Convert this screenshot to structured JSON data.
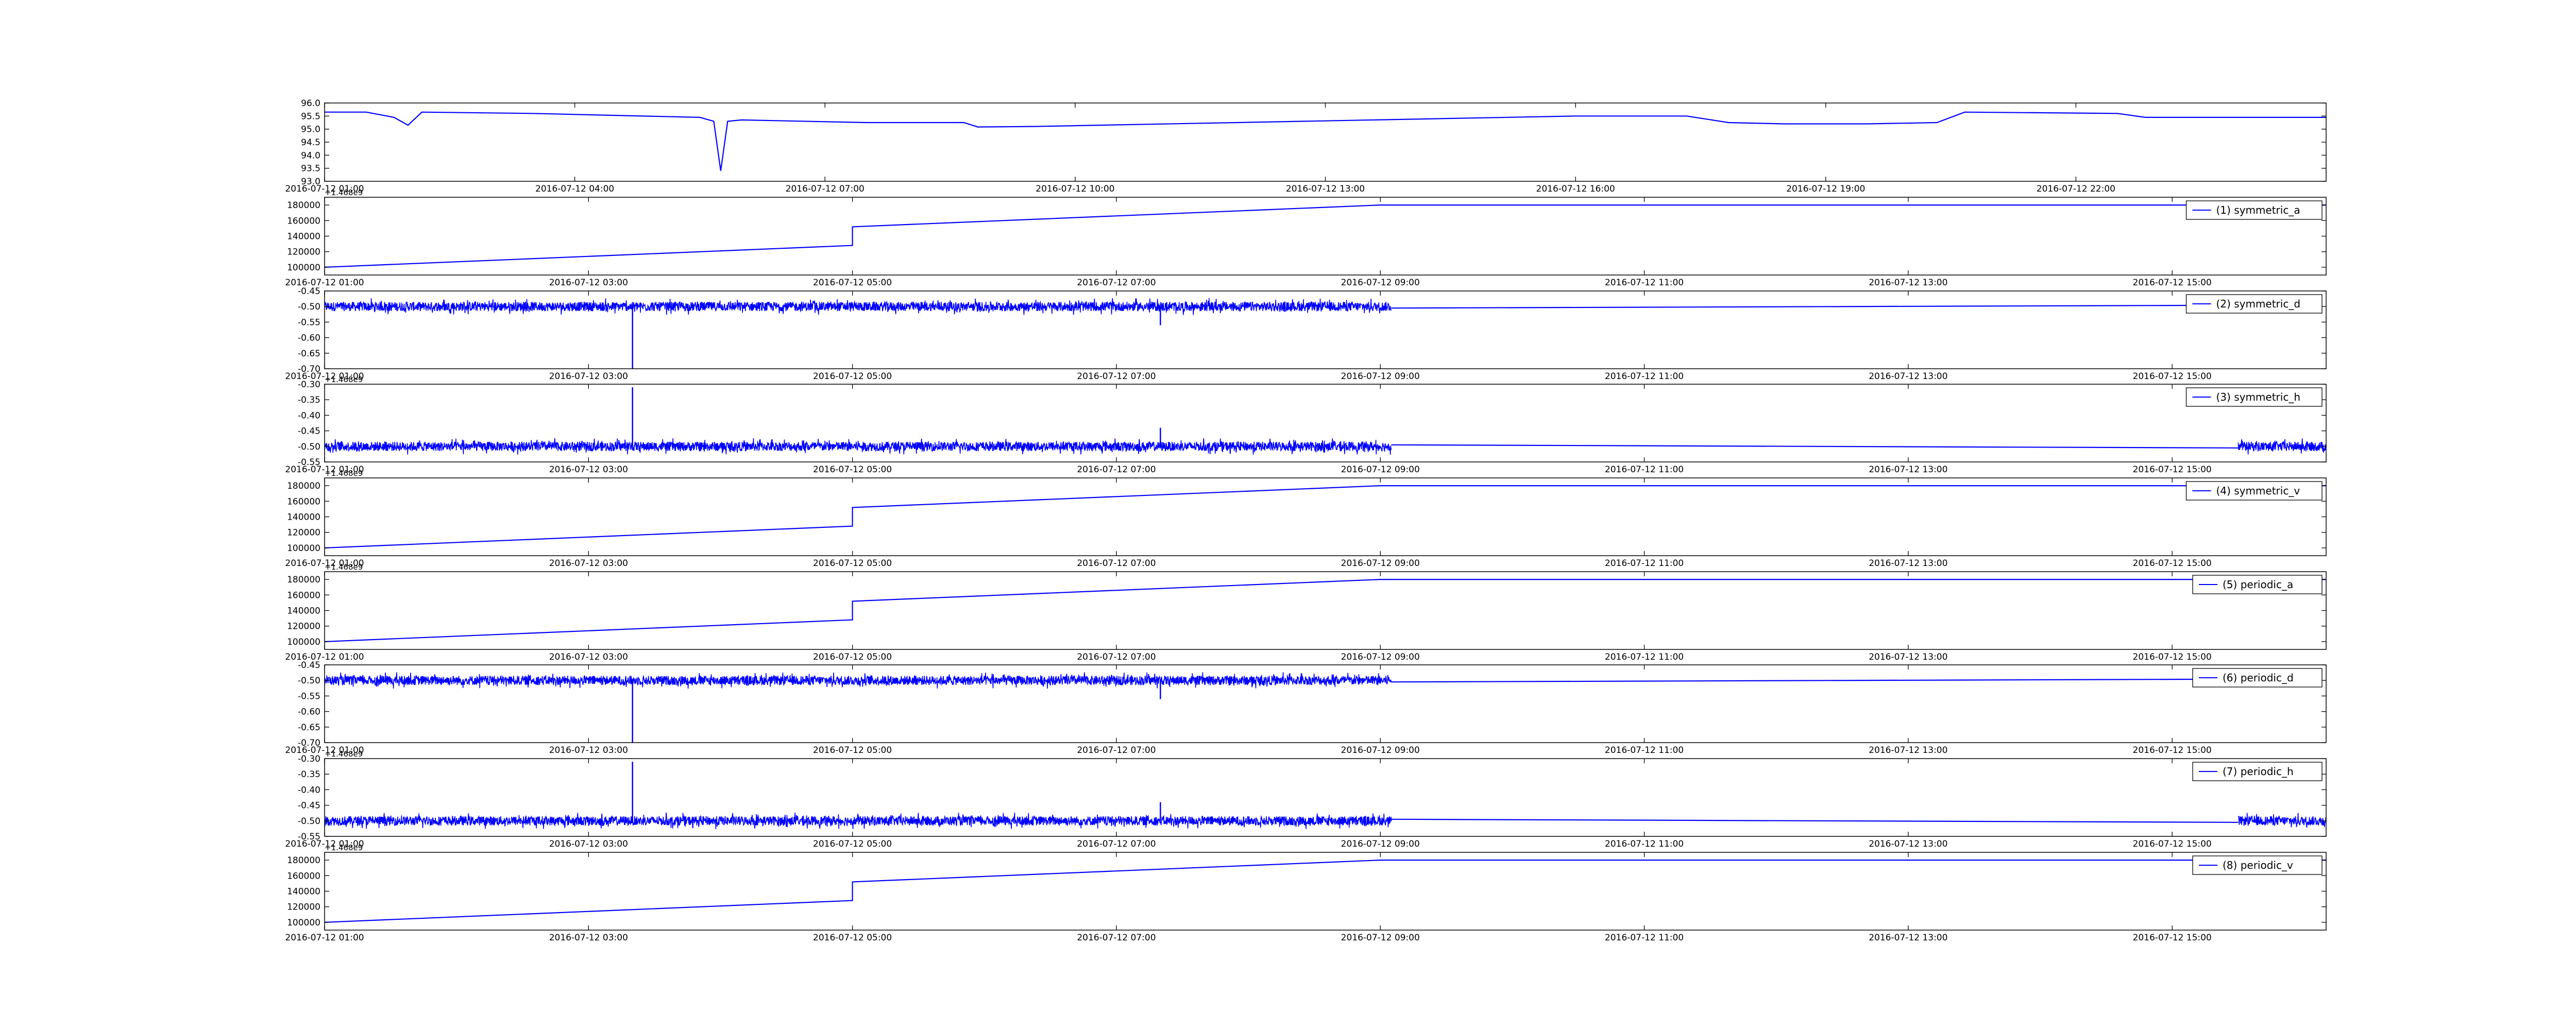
{
  "colors": {
    "line": "#0000ff",
    "axes": "#000000",
    "background": "#ffffff"
  },
  "chart_data": [
    {
      "type": "line",
      "title": "",
      "xlabel": "",
      "ylabel": "",
      "grid": false,
      "legend": "",
      "xaxis": "datetime",
      "xlim": [
        "2016-07-12 01:00",
        "2016-07-13 01:00"
      ],
      "xticks": [
        "2016-07-12 01:00",
        "2016-07-12 04:00",
        "2016-07-12 07:00",
        "2016-07-12 10:00",
        "2016-07-12 13:00",
        "2016-07-12 16:00",
        "2016-07-12 19:00",
        "2016-07-12 22:00"
      ],
      "ylim": [
        93.0,
        96.0
      ],
      "yticks": [
        "93.0",
        "93.5",
        "94.0",
        "94.5",
        "95.0",
        "95.5",
        "96.0"
      ],
      "series": [
        {
          "x": [
            "2016-07-12 01:00",
            "2016-07-12 01:30",
            "2016-07-12 01:50",
            "2016-07-12 02:00",
            "2016-07-12 02:10",
            "2016-07-12 03:30",
            "2016-07-12 05:30",
            "2016-07-12 05:40",
            "2016-07-12 05:45",
            "2016-07-12 05:50",
            "2016-07-12 06:00",
            "2016-07-12 07:30",
            "2016-07-12 08:40",
            "2016-07-12 08:50",
            "2016-07-12 09:30",
            "2016-07-12 16:00",
            "2016-07-12 17:20",
            "2016-07-12 17:50",
            "2016-07-12 18:30",
            "2016-07-12 19:30",
            "2016-07-12 20:20",
            "2016-07-12 20:40",
            "2016-07-12 22:30",
            "2016-07-12 22:50",
            "2016-07-13 01:00"
          ],
          "y": [
            95.65,
            95.65,
            95.45,
            95.15,
            95.65,
            95.6,
            95.45,
            95.3,
            93.4,
            95.3,
            95.35,
            95.25,
            95.25,
            95.08,
            95.1,
            95.5,
            95.5,
            95.25,
            95.2,
            95.2,
            95.25,
            95.65,
            95.6,
            95.45,
            95.45
          ]
        }
      ]
    },
    {
      "type": "line",
      "title": "",
      "xlabel": "",
      "ylabel": "",
      "grid": false,
      "legend": "top-right",
      "offset_text": "+1.468e9",
      "xaxis": "datetime",
      "xlim": [
        "2016-07-12 01:00",
        "2016-07-12 16:10"
      ],
      "xticks": [
        "2016-07-12 01:00",
        "2016-07-12 03:00",
        "2016-07-12 05:00",
        "2016-07-12 07:00",
        "2016-07-12 09:00",
        "2016-07-12 11:00",
        "2016-07-12 13:00",
        "2016-07-12 15:00"
      ],
      "ylim": [
        90000,
        190000
      ],
      "yticks": [
        "100000",
        "120000",
        "140000",
        "160000",
        "180000"
      ],
      "series": [
        {
          "name": "(1) symmetric_a",
          "x": [
            "2016-07-12 01:00",
            "2016-07-12 05:00",
            "2016-07-12 05:00",
            "2016-07-12 09:00",
            "2016-07-12 16:10"
          ],
          "y": [
            100000,
            128000,
            152000,
            180000,
            180000
          ]
        }
      ]
    },
    {
      "type": "line",
      "title": "",
      "xlabel": "",
      "ylabel": "",
      "grid": false,
      "legend": "top-right",
      "xaxis": "datetime",
      "xlim": [
        "2016-07-12 01:00",
        "2016-07-12 16:10"
      ],
      "xticks": [
        "2016-07-12 01:00",
        "2016-07-12 03:00",
        "2016-07-12 05:00",
        "2016-07-12 07:00",
        "2016-07-12 09:00",
        "2016-07-12 11:00",
        "2016-07-12 13:00",
        "2016-07-12 15:00"
      ],
      "ylim": [
        -0.7,
        -0.45
      ],
      "yticks": [
        "-0.70",
        "-0.65",
        "-0.60",
        "-0.55",
        "-0.50",
        "-0.45"
      ],
      "series": [
        {
          "name": "(2) symmetric_d",
          "noise_band": {
            "from": "2016-07-12 01:00",
            "to": "2016-07-12 09:05",
            "center": -0.5,
            "amplitude": 0.02
          },
          "x": [
            "2016-07-12 09:05",
            "2016-07-12 16:05"
          ],
          "y": [
            -0.505,
            -0.495
          ],
          "spikes": [
            {
              "x": "2016-07-12 03:20",
              "y": -0.7
            },
            {
              "x": "2016-07-12 07:20",
              "y": -0.56
            }
          ]
        }
      ]
    },
    {
      "type": "line",
      "title": "",
      "xlabel": "",
      "ylabel": "",
      "grid": false,
      "legend": "top-right",
      "offset_text": "+1.468e9",
      "xaxis": "datetime",
      "xlim": [
        "2016-07-12 01:00",
        "2016-07-12 16:10"
      ],
      "xticks": [
        "2016-07-12 01:00",
        "2016-07-12 03:00",
        "2016-07-12 05:00",
        "2016-07-12 07:00",
        "2016-07-12 09:00",
        "2016-07-12 11:00",
        "2016-07-12 13:00",
        "2016-07-12 15:00"
      ],
      "ylim": [
        -0.55,
        -0.3
      ],
      "yticks": [
        "-0.55",
        "-0.50",
        "-0.45",
        "-0.40",
        "-0.35",
        "-0.30"
      ],
      "series": [
        {
          "name": "(3) symmetric_h",
          "noise_band": {
            "from": "2016-07-12 01:00",
            "to": "2016-07-12 09:05",
            "center": -0.5,
            "amplitude": 0.02
          },
          "noise_band_2": {
            "from": "2016-07-12 15:30",
            "to": "2016-07-12 16:10",
            "center": -0.5,
            "amplitude": 0.02
          },
          "x": [
            "2016-07-12 09:05",
            "2016-07-12 15:30"
          ],
          "y": [
            -0.495,
            -0.505
          ],
          "spikes": [
            {
              "x": "2016-07-12 03:20",
              "y": -0.31
            },
            {
              "x": "2016-07-12 07:20",
              "y": -0.44
            }
          ]
        }
      ]
    },
    {
      "type": "line",
      "title": "",
      "xlabel": "",
      "ylabel": "",
      "grid": false,
      "legend": "top-right",
      "offset_text": "+1.468e9",
      "xaxis": "datetime",
      "xlim": [
        "2016-07-12 01:00",
        "2016-07-12 16:10"
      ],
      "xticks": [
        "2016-07-12 01:00",
        "2016-07-12 03:00",
        "2016-07-12 05:00",
        "2016-07-12 07:00",
        "2016-07-12 09:00",
        "2016-07-12 11:00",
        "2016-07-12 13:00",
        "2016-07-12 15:00"
      ],
      "ylim": [
        90000,
        190000
      ],
      "yticks": [
        "100000",
        "120000",
        "140000",
        "160000",
        "180000"
      ],
      "series": [
        {
          "name": "(4) symmetric_v",
          "x": [
            "2016-07-12 01:00",
            "2016-07-12 05:00",
            "2016-07-12 05:00",
            "2016-07-12 09:00",
            "2016-07-12 16:10"
          ],
          "y": [
            100000,
            128000,
            152000,
            180000,
            180000
          ]
        }
      ]
    },
    {
      "type": "line",
      "title": "",
      "xlabel": "",
      "ylabel": "",
      "grid": false,
      "legend": "top-right",
      "offset_text": "+1.468e9",
      "xaxis": "datetime",
      "xlim": [
        "2016-07-12 01:00",
        "2016-07-12 16:10"
      ],
      "xticks": [
        "2016-07-12 01:00",
        "2016-07-12 03:00",
        "2016-07-12 05:00",
        "2016-07-12 07:00",
        "2016-07-12 09:00",
        "2016-07-12 11:00",
        "2016-07-12 13:00",
        "2016-07-12 15:00"
      ],
      "ylim": [
        90000,
        190000
      ],
      "yticks": [
        "100000",
        "120000",
        "140000",
        "160000",
        "180000"
      ],
      "series": [
        {
          "name": "(5) periodic_a",
          "x": [
            "2016-07-12 01:00",
            "2016-07-12 05:00",
            "2016-07-12 05:00",
            "2016-07-12 09:00",
            "2016-07-12 16:10"
          ],
          "y": [
            100000,
            128000,
            152000,
            180000,
            180000
          ]
        }
      ]
    },
    {
      "type": "line",
      "title": "",
      "xlabel": "",
      "ylabel": "",
      "grid": false,
      "legend": "top-right",
      "xaxis": "datetime",
      "xlim": [
        "2016-07-12 01:00",
        "2016-07-12 16:10"
      ],
      "xticks": [
        "2016-07-12 01:00",
        "2016-07-12 03:00",
        "2016-07-12 05:00",
        "2016-07-12 07:00",
        "2016-07-12 09:00",
        "2016-07-12 11:00",
        "2016-07-12 13:00",
        "2016-07-12 15:00"
      ],
      "ylim": [
        -0.7,
        -0.45
      ],
      "yticks": [
        "-0.70",
        "-0.65",
        "-0.60",
        "-0.55",
        "-0.50",
        "-0.45"
      ],
      "series": [
        {
          "name": "(6) periodic_d",
          "noise_band": {
            "from": "2016-07-12 01:00",
            "to": "2016-07-12 09:05",
            "center": -0.5,
            "amplitude": 0.02
          },
          "x": [
            "2016-07-12 09:05",
            "2016-07-12 16:05"
          ],
          "y": [
            -0.505,
            -0.495
          ],
          "spikes": [
            {
              "x": "2016-07-12 03:20",
              "y": -0.7
            },
            {
              "x": "2016-07-12 07:20",
              "y": -0.56
            }
          ]
        }
      ]
    },
    {
      "type": "line",
      "title": "",
      "xlabel": "",
      "ylabel": "",
      "grid": false,
      "legend": "top-right",
      "offset_text": "+1.468e9",
      "xaxis": "datetime",
      "xlim": [
        "2016-07-12 01:00",
        "2016-07-12 16:10"
      ],
      "xticks": [
        "2016-07-12 01:00",
        "2016-07-12 03:00",
        "2016-07-12 05:00",
        "2016-07-12 07:00",
        "2016-07-12 09:00",
        "2016-07-12 11:00",
        "2016-07-12 13:00",
        "2016-07-12 15:00"
      ],
      "ylim": [
        -0.55,
        -0.3
      ],
      "yticks": [
        "-0.55",
        "-0.50",
        "-0.45",
        "-0.40",
        "-0.35",
        "-0.30"
      ],
      "series": [
        {
          "name": "(7) periodic_h",
          "noise_band": {
            "from": "2016-07-12 01:00",
            "to": "2016-07-12 09:05",
            "center": -0.5,
            "amplitude": 0.02
          },
          "noise_band_2": {
            "from": "2016-07-12 15:30",
            "to": "2016-07-12 16:10",
            "center": -0.5,
            "amplitude": 0.02
          },
          "x": [
            "2016-07-12 09:05",
            "2016-07-12 15:30"
          ],
          "y": [
            -0.495,
            -0.505
          ],
          "spikes": [
            {
              "x": "2016-07-12 03:20",
              "y": -0.31
            },
            {
              "x": "2016-07-12 07:20",
              "y": -0.44
            }
          ]
        }
      ]
    },
    {
      "type": "line",
      "title": "",
      "xlabel": "",
      "ylabel": "",
      "grid": false,
      "legend": "top-right",
      "offset_text": "+1.468e9",
      "xaxis": "datetime",
      "xlim": [
        "2016-07-12 01:00",
        "2016-07-12 16:10"
      ],
      "xticks": [
        "2016-07-12 01:00",
        "2016-07-12 03:00",
        "2016-07-12 05:00",
        "2016-07-12 07:00",
        "2016-07-12 09:00",
        "2016-07-12 11:00",
        "2016-07-12 13:00",
        "2016-07-12 15:00"
      ],
      "ylim": [
        90000,
        190000
      ],
      "yticks": [
        "100000",
        "120000",
        "140000",
        "160000",
        "180000"
      ],
      "series": [
        {
          "name": "(8) periodic_v",
          "x": [
            "2016-07-12 01:00",
            "2016-07-12 05:00",
            "2016-07-12 05:00",
            "2016-07-12 09:00",
            "2016-07-12 16:10"
          ],
          "y": [
            100000,
            128000,
            152000,
            180000,
            180000
          ]
        }
      ]
    }
  ]
}
